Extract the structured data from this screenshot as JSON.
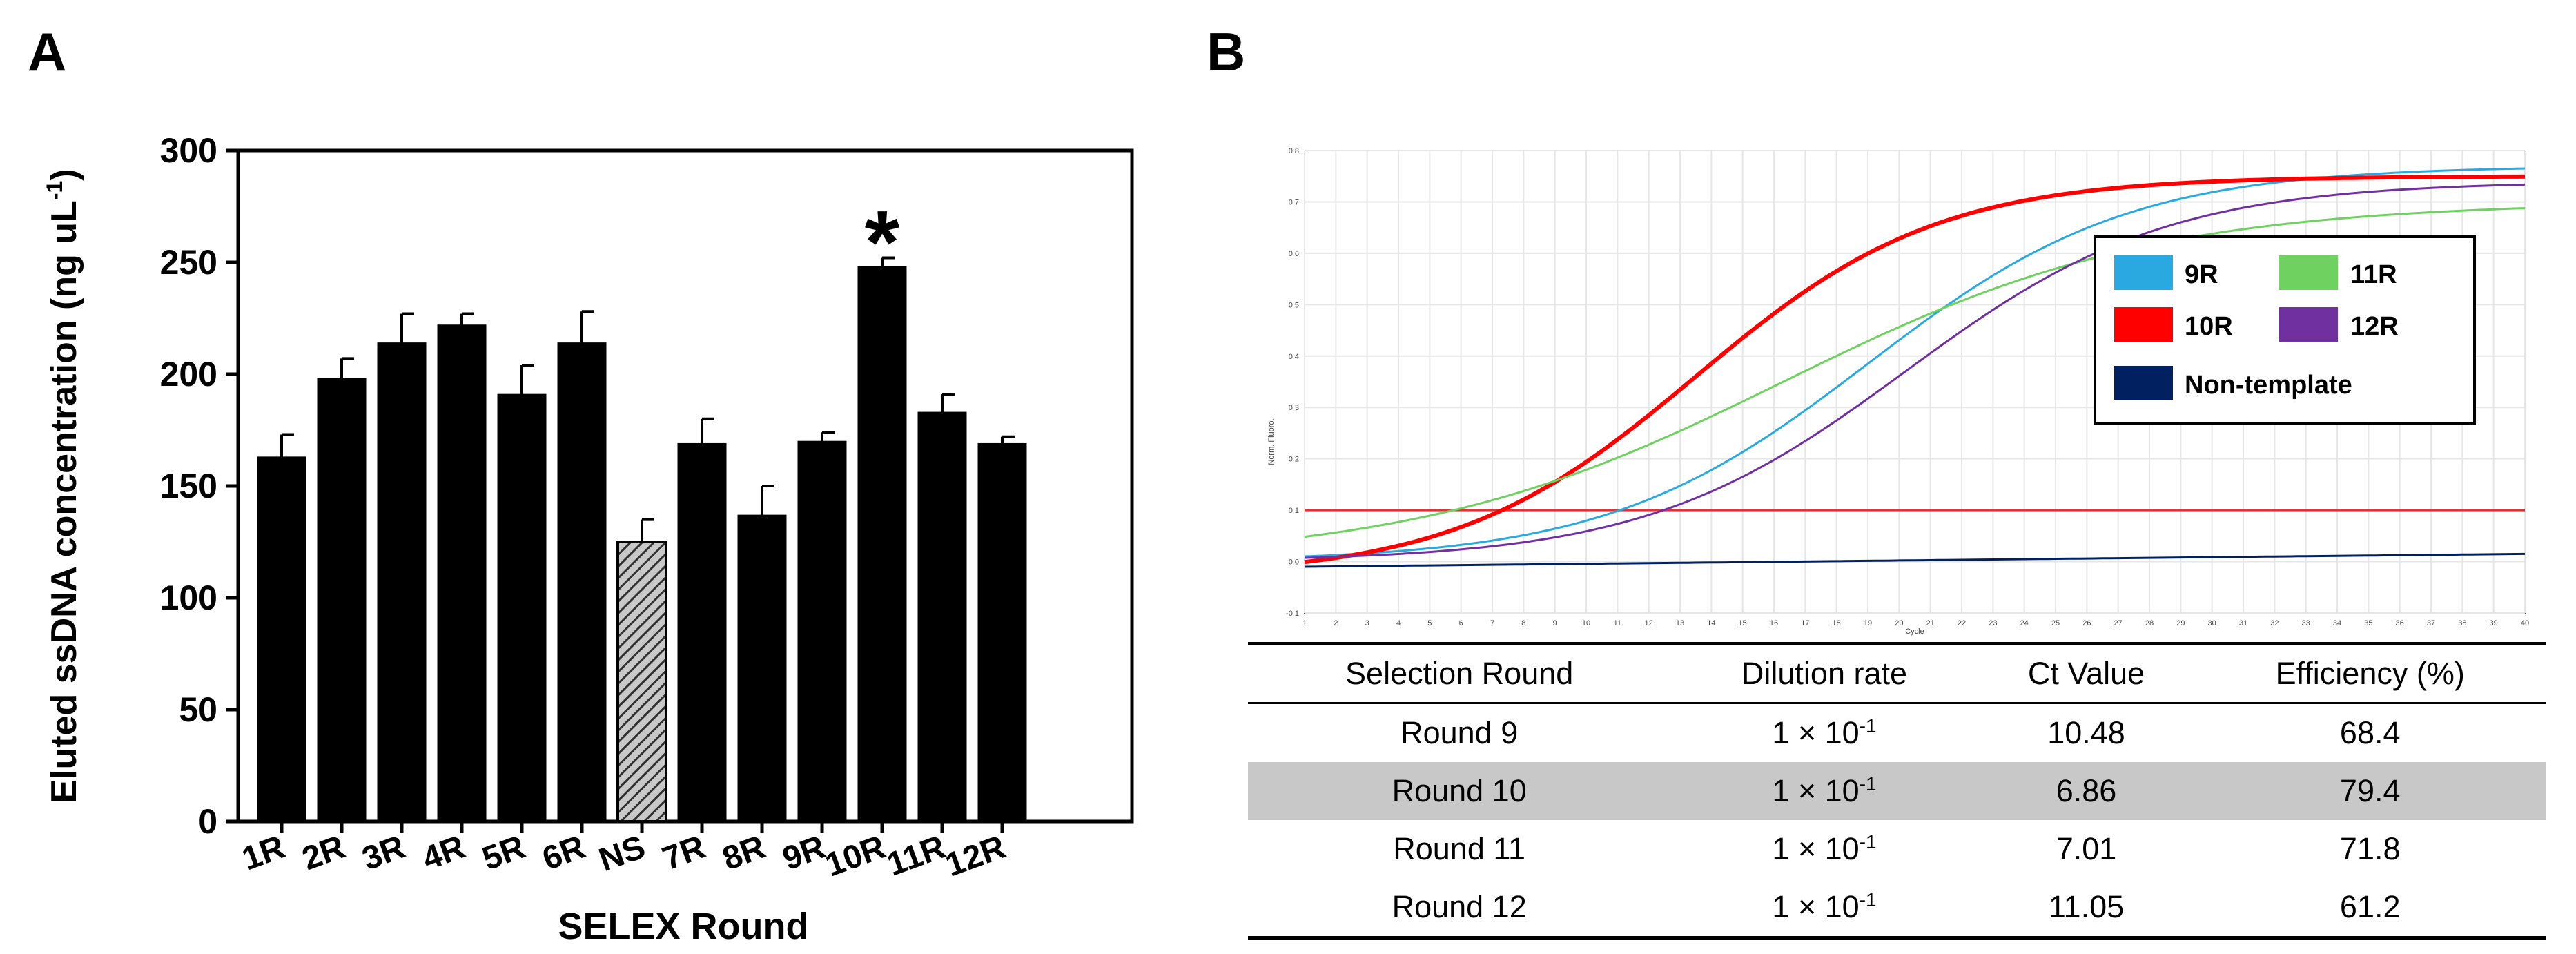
{
  "panel_labels": {
    "a": "A",
    "b": "B"
  },
  "chart_data": [
    {
      "type": "bar",
      "panel": "A",
      "title": "",
      "xlabel": "SELEX Round",
      "ylabel": "Eluted ssDNA concentration (ng uL",
      "ylabel_sup": "-1",
      "ylabel_close": ")",
      "ylim": [
        0,
        300
      ],
      "yticks": [
        0,
        50,
        100,
        150,
        200,
        250,
        300
      ],
      "categories": [
        "1R",
        "2R",
        "3R",
        "4R",
        "5R",
        "6R",
        "NS",
        "7R",
        "8R",
        "9R",
        "10R",
        "11R",
        "12R"
      ],
      "values": [
        163,
        198,
        214,
        222,
        191,
        214,
        125,
        169,
        137,
        170,
        248,
        183,
        169
      ],
      "errors": [
        10,
        9,
        13,
        5,
        13,
        14,
        10,
        11,
        13,
        4,
        4,
        8,
        3
      ],
      "bar_colors": [
        "#000000",
        "#000000",
        "#000000",
        "#000000",
        "#000000",
        "#000000",
        "hatched-gray",
        "#000000",
        "#000000",
        "#000000",
        "#000000",
        "#000000",
        "#000000"
      ],
      "annotations": [
        {
          "category": "10R",
          "text": "*"
        }
      ]
    },
    {
      "type": "line",
      "panel": "B",
      "title": "",
      "xlabel": "Cycle",
      "ylabel": "Norm. Fluoro.",
      "xlim": [
        1,
        40
      ],
      "ylim": [
        -0.1,
        0.8
      ],
      "xticks": [
        1,
        2,
        3,
        4,
        5,
        6,
        7,
        8,
        9,
        10,
        11,
        12,
        13,
        14,
        15,
        16,
        17,
        18,
        19,
        20,
        21,
        22,
        23,
        24,
        25,
        26,
        27,
        28,
        29,
        30,
        31,
        32,
        33,
        34,
        35,
        36,
        37,
        38,
        39,
        40
      ],
      "yticks": [
        -0.1,
        0.0,
        0.1,
        0.2,
        0.3,
        0.4,
        0.5,
        0.6,
        0.7,
        0.8
      ],
      "ytick_labels": [
        "-0.1",
        "0.0",
        "0.1",
        "0.2",
        "0.3",
        "0.4",
        "0.5",
        "0.6",
        "0.7",
        "0.8"
      ],
      "threshold": 0.1,
      "threshold_color": "#e83030",
      "series": [
        {
          "name": "9R",
          "color": "#29a9e0",
          "plateau": 0.77,
          "midpoint": 19.0,
          "slope": 0.24,
          "baseline": 0.0
        },
        {
          "name": "10R",
          "color": "#ff0000",
          "plateau": 0.75,
          "midpoint": 13.5,
          "slope": 0.26,
          "baseline": -0.03
        },
        {
          "name": "11R",
          "color": "#6ed160",
          "plateau": 0.7,
          "midpoint": 16.3,
          "slope": 0.17,
          "baseline": 0.0
        },
        {
          "name": "12R",
          "color": "#7030a0",
          "plateau": 0.74,
          "midpoint": 20.2,
          "slope": 0.24,
          "baseline": 0.0
        },
        {
          "name": "Non-template",
          "color": "#002060",
          "start_value": -0.01,
          "end_value": 0.015
        }
      ]
    }
  ],
  "legend": [
    {
      "label": "9R",
      "color": "#29a9e0"
    },
    {
      "label": "11R",
      "color": "#6ed160"
    },
    {
      "label": "10R",
      "color": "#ff0000"
    },
    {
      "label": "12R",
      "color": "#7030a0"
    },
    {
      "label": "Non-template",
      "color": "#002060"
    }
  ],
  "table": {
    "headers": [
      "Selection Round",
      "Dilution rate",
      "Ct Value",
      "Efficiency (%)"
    ],
    "rows": [
      {
        "round": "Round 9",
        "dilution": "1 × 10",
        "dilution_exp": "-1",
        "ct": "10.48",
        "eff": "68.4"
      },
      {
        "round": "Round 10",
        "dilution": "1 × 10",
        "dilution_exp": "-1",
        "ct": "6.86",
        "eff": "79.4"
      },
      {
        "round": "Round 11",
        "dilution": "1 × 10",
        "dilution_exp": "-1",
        "ct": "7.01",
        "eff": "71.8"
      },
      {
        "round": "Round 12",
        "dilution": "1 × 10",
        "dilution_exp": "-1",
        "ct": "11.05",
        "eff": "61.2"
      }
    ],
    "highlight_row": 1
  }
}
